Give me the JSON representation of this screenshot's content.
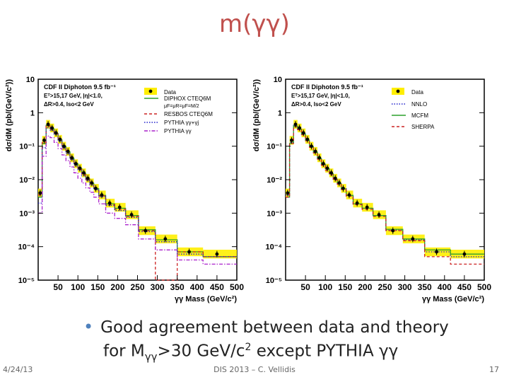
{
  "slide": {
    "title": "m(γγ)",
    "bullet_line1": "Good agreement between data and theory",
    "bullet_line2_pre": "for M",
    "bullet_line2_sub": "γγ",
    "bullet_line2_mid": ">30 GeV/c",
    "bullet_line2_sup": "2",
    "bullet_line2_post": " except PYTHIA γγ",
    "footer_date": "4/24/13",
    "footer_center": "DIS 2013 – C. Vellidis",
    "footer_page": "17"
  },
  "chart_data": [
    {
      "type": "line",
      "panel": "left",
      "xlabel": "γγ Mass (GeV/c²)",
      "ylabel": "dσ/dM (pb/(GeV/c²))",
      "xlim": [
        0,
        500
      ],
      "ylim": [
        1e-05,
        10
      ],
      "yscale": "log",
      "xticks": [
        "50",
        "100",
        "150",
        "200",
        "250",
        "300",
        "350",
        "400",
        "450",
        "500"
      ],
      "yticks": [
        "10⁻⁵",
        "10⁻⁴",
        "10⁻³",
        "10⁻²",
        "10⁻¹",
        "1",
        "10"
      ],
      "info_lines": [
        "CDF II  Diphoton  9.5 fb⁻¹",
        "Eᵀ>15,17 GeV, |η|<1.0,",
        "ΔR>0.4, Iso<2 GeV"
      ],
      "legend_title": "Data",
      "legend_extra": "μF=μR=μF=M/2",
      "data": {
        "x": [
          5,
          15,
          25,
          35,
          45,
          55,
          65,
          75,
          85,
          95,
          105,
          115,
          125,
          135,
          145,
          160,
          180,
          205,
          235,
          270,
          320,
          380,
          450
        ],
        "y": [
          0.004,
          0.15,
          0.45,
          0.35,
          0.25,
          0.16,
          0.1,
          0.07,
          0.045,
          0.03,
          0.022,
          0.016,
          0.011,
          0.008,
          0.0055,
          0.0035,
          0.002,
          0.0015,
          0.0009,
          0.0003,
          0.00017,
          7e-05,
          6e-05
        ]
      },
      "series": [
        {
          "name": "DIPHOX CTEQ6M",
          "style": "solid",
          "color": "#2ca02c",
          "y": [
            0.003,
            0.12,
            0.42,
            0.33,
            0.24,
            0.155,
            0.1,
            0.068,
            0.044,
            0.03,
            0.021,
            0.015,
            0.0105,
            0.0078,
            0.0054,
            0.0034,
            0.0019,
            0.0014,
            0.00085,
            0.00032,
            0.00016,
            7e-05,
            5e-05
          ]
        },
        {
          "name": "RESBOS CTEQ6M",
          "style": "dashed",
          "color": "#cc2222",
          "y": [
            0.0035,
            0.13,
            0.4,
            0.32,
            0.23,
            0.15,
            0.095,
            0.065,
            0.042,
            0.028,
            0.02,
            0.014,
            0.01,
            0.0075,
            0.0052,
            0.0033,
            0.0018,
            0.0013,
            0.0008,
            0.0003,
            1e-05,
            7e-05,
            5e-05
          ]
        },
        {
          "name": "PYTHIA γγ+γj",
          "style": "dotted",
          "color": "#2222cc",
          "y": [
            0.002,
            0.09,
            0.35,
            0.3,
            0.22,
            0.14,
            0.09,
            0.06,
            0.04,
            0.027,
            0.019,
            0.013,
            0.0095,
            0.007,
            0.005,
            0.0031,
            0.0017,
            0.0012,
            0.00075,
            0.00028,
            0.00014,
            6e-05,
            5e-05
          ]
        },
        {
          "name": "PYTHIA γγ",
          "style": "dashdot",
          "color": "#aa22cc",
          "y": [
            0.001,
            0.05,
            0.2,
            0.18,
            0.13,
            0.085,
            0.055,
            0.037,
            0.024,
            0.016,
            0.011,
            0.008,
            0.0057,
            0.0042,
            0.003,
            0.0019,
            0.001,
            0.0007,
            0.00045,
            0.00017,
            8e-05,
            4e-05,
            3e-05
          ]
        }
      ]
    },
    {
      "type": "line",
      "panel": "right",
      "xlabel": "γγ Mass (GeV/c²)",
      "ylabel": "dσ/dM (pb/(GeV/c²))",
      "xlim": [
        0,
        500
      ],
      "ylim": [
        1e-05,
        10
      ],
      "yscale": "log",
      "xticks": [
        "50",
        "100",
        "150",
        "200",
        "250",
        "300",
        "350",
        "400",
        "450",
        "500"
      ],
      "yticks": [
        "10⁻⁵",
        "10⁻⁴",
        "10⁻³",
        "10⁻²",
        "10⁻¹",
        "1",
        "10"
      ],
      "info_lines": [
        "CDF II  Diphoton  9.5 fb⁻¹",
        "Eᵀ>15,17 GeV, |η|<1.0,",
        "ΔR>0.4, Iso<2 GeV"
      ],
      "legend_title": "Data",
      "data": {
        "x": [
          5,
          15,
          25,
          35,
          45,
          55,
          65,
          75,
          85,
          95,
          105,
          115,
          125,
          135,
          145,
          160,
          180,
          205,
          235,
          270,
          320,
          380,
          450
        ],
        "y": [
          0.004,
          0.15,
          0.45,
          0.35,
          0.25,
          0.16,
          0.1,
          0.07,
          0.045,
          0.03,
          0.022,
          0.016,
          0.011,
          0.008,
          0.0055,
          0.0035,
          0.002,
          0.0015,
          0.0009,
          0.0003,
          0.00017,
          7e-05,
          6e-05
        ]
      },
      "series": [
        {
          "name": "NNLO",
          "style": "dotted",
          "color": "#2222cc",
          "y": [
            0.0035,
            0.13,
            0.42,
            0.33,
            0.24,
            0.155,
            0.1,
            0.068,
            0.044,
            0.03,
            0.021,
            0.015,
            0.0105,
            0.0078,
            0.0054,
            0.0034,
            0.0019,
            0.0014,
            0.00085,
            0.00031,
            0.00016,
            7e-05,
            5e-05
          ]
        },
        {
          "name": "MCFM",
          "style": "solid",
          "color": "#2ca02c",
          "y": [
            0.003,
            0.12,
            0.4,
            0.32,
            0.23,
            0.15,
            0.097,
            0.066,
            0.043,
            0.029,
            0.021,
            0.015,
            0.0103,
            0.0077,
            0.0053,
            0.0034,
            0.0019,
            0.0014,
            0.00085,
            0.00033,
            0.00017,
            8e-05,
            6e-05
          ]
        },
        {
          "name": "SHERPA",
          "style": "dashed",
          "color": "#cc2222",
          "y": [
            0.003,
            0.12,
            0.38,
            0.31,
            0.22,
            0.145,
            0.093,
            0.063,
            0.041,
            0.027,
            0.019,
            0.014,
            0.0098,
            0.0073,
            0.0051,
            0.0032,
            0.0018,
            0.0013,
            0.0008,
            0.0003,
            0.00015,
            5e-05,
            3e-05
          ]
        }
      ]
    }
  ]
}
